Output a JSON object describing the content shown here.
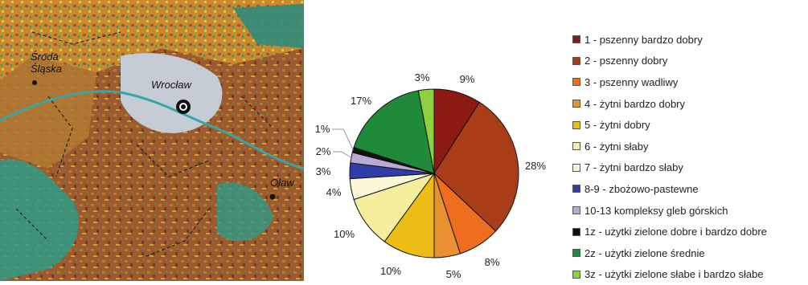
{
  "map": {
    "cities": [
      {
        "name_lines": [
          "Środa",
          "Śląska"
        ]
      },
      {
        "name_lines": [
          "Wrocław"
        ]
      },
      {
        "name_lines": [
          "Oław"
        ]
      }
    ]
  },
  "chart_data": {
    "type": "pie",
    "series": [
      {
        "label": "1 - pszenny bardzo dobry",
        "value": 9,
        "display": "9%",
        "color": "#8b1a12"
      },
      {
        "label": "2 - pszenny dobry",
        "value": 28,
        "display": "28%",
        "color": "#a83d18"
      },
      {
        "label": "3 - pszenny wadliwy",
        "value": 8,
        "display": "8%",
        "color": "#ef6e1e"
      },
      {
        "label": "4 - żytni bardzo dobry",
        "value": 5,
        "display": "5%",
        "color": "#e99030"
      },
      {
        "label": "5 - żytni dobry",
        "value": 10,
        "display": "10%",
        "color": "#edbd15"
      },
      {
        "label": "6 - żytni słaby",
        "value": 10,
        "display": "10%",
        "color": "#f4ee9d"
      },
      {
        "label": "7 - żytni bardzo słaby",
        "value": 4,
        "display": "4%",
        "color": "#faf7d6"
      },
      {
        "label": "8-9 - zbożowo-pastewne",
        "value": 3,
        "display": "3%",
        "color": "#2e3ea8"
      },
      {
        "label": "10-13 kompleksy gleb górskich",
        "value": 2,
        "display": "2%",
        "color": "#b9aad3"
      },
      {
        "label": "1z - użytki zielone dobre i bardzo dobre",
        "value": 1,
        "display": "1%",
        "color": "#111111"
      },
      {
        "label": "2z - użytki zielone średnie",
        "value": 17,
        "display": "17%",
        "color": "#1f8a3a"
      },
      {
        "label": "3z - użytki zielone słabe i bardzo słabe",
        "value": 3,
        "display": "3%",
        "color": "#8ed13f"
      }
    ]
  }
}
